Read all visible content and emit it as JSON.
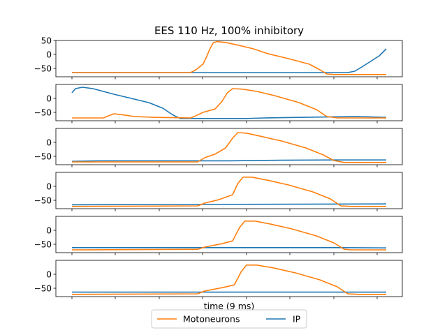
{
  "chart_data": {
    "type": "line",
    "title": "EES 110 Hz, 100% inhibitory",
    "xlabel": "time (9 ms)",
    "ylabel": "",
    "xlim": [
      0,
      9
    ],
    "legend": {
      "placement": "bottom-center",
      "entries": [
        {
          "name": "Motoneurons",
          "color": "#ff7f0e"
        },
        {
          "name": "IP",
          "color": "#1f77b4"
        }
      ]
    },
    "series_colors": {
      "motoneurons": "#ff7f0e",
      "ip": "#1f77b4"
    },
    "panels": [
      {
        "ylim": [
          -80,
          50
        ],
        "yticks": [
          50,
          0,
          -50
        ],
        "motoneurons": [
          [
            0,
            -65
          ],
          [
            3.4,
            -65
          ],
          [
            3.55,
            -55
          ],
          [
            3.75,
            -35
          ],
          [
            3.85,
            -10
          ],
          [
            3.95,
            20
          ],
          [
            4.05,
            42
          ],
          [
            4.15,
            46
          ],
          [
            4.4,
            43
          ],
          [
            4.8,
            32
          ],
          [
            5.2,
            20
          ],
          [
            5.6,
            3
          ],
          [
            6.2,
            -15
          ],
          [
            6.8,
            -35
          ],
          [
            7.1,
            -55
          ],
          [
            7.3,
            -70
          ],
          [
            7.5,
            -72
          ],
          [
            9,
            -72
          ]
        ],
        "ip": [
          [
            0,
            -65
          ],
          [
            7.5,
            -65
          ],
          [
            7.9,
            -65
          ],
          [
            8.1,
            -60
          ],
          [
            8.3,
            -45
          ],
          [
            8.55,
            -25
          ],
          [
            8.8,
            -5
          ],
          [
            9,
            20
          ]
        ]
      },
      {
        "ylim": [
          -80,
          50
        ],
        "yticks": [
          0,
          -50
        ],
        "motoneurons": [
          [
            0,
            -70
          ],
          [
            0.9,
            -70
          ],
          [
            1.1,
            -60
          ],
          [
            1.2,
            -55
          ],
          [
            1.4,
            -58
          ],
          [
            1.8,
            -65
          ],
          [
            2.4,
            -68
          ],
          [
            3.4,
            -70
          ],
          [
            3.55,
            -62
          ],
          [
            3.75,
            -50
          ],
          [
            4.1,
            -38
          ],
          [
            4.3,
            -10
          ],
          [
            4.45,
            20
          ],
          [
            4.6,
            35
          ],
          [
            4.9,
            33
          ],
          [
            5.3,
            25
          ],
          [
            5.8,
            10
          ],
          [
            6.5,
            -15
          ],
          [
            7.0,
            -40
          ],
          [
            7.3,
            -65
          ],
          [
            7.6,
            -70
          ],
          [
            9,
            -70
          ]
        ],
        "ip": [
          [
            0,
            20
          ],
          [
            0.1,
            35
          ],
          [
            0.3,
            40
          ],
          [
            0.6,
            35
          ],
          [
            1.2,
            15
          ],
          [
            2.2,
            -15
          ],
          [
            2.6,
            -35
          ],
          [
            2.9,
            -60
          ],
          [
            3.1,
            -72
          ],
          [
            3.5,
            -72
          ],
          [
            4.0,
            -72
          ],
          [
            5.0,
            -72
          ],
          [
            5.5,
            -70
          ],
          [
            6.5,
            -68
          ],
          [
            7.5,
            -66
          ],
          [
            8.2,
            -65
          ],
          [
            9,
            -68
          ]
        ]
      },
      {
        "ylim": [
          -80,
          50
        ],
        "yticks": [
          0,
          -50
        ],
        "motoneurons": [
          [
            0,
            -70
          ],
          [
            3.6,
            -70
          ],
          [
            3.8,
            -55
          ],
          [
            4.1,
            -42
          ],
          [
            4.4,
            -20
          ],
          [
            4.6,
            15
          ],
          [
            4.75,
            35
          ],
          [
            5.0,
            33
          ],
          [
            5.4,
            22
          ],
          [
            6.0,
            5
          ],
          [
            6.7,
            -20
          ],
          [
            7.2,
            -45
          ],
          [
            7.5,
            -65
          ],
          [
            7.8,
            -72
          ],
          [
            9,
            -72
          ]
        ],
        "ip": [
          [
            0,
            -68
          ],
          [
            0.8,
            -66
          ],
          [
            3.6,
            -66
          ],
          [
            4.5,
            -66
          ],
          [
            6.0,
            -64
          ],
          [
            7.5,
            -63
          ],
          [
            9,
            -63
          ]
        ]
      },
      {
        "ylim": [
          -80,
          50
        ],
        "yticks": [
          0,
          -50
        ],
        "motoneurons": [
          [
            0,
            -72
          ],
          [
            3.6,
            -70
          ],
          [
            3.8,
            -60
          ],
          [
            4.2,
            -48
          ],
          [
            4.6,
            -30
          ],
          [
            4.75,
            10
          ],
          [
            4.9,
            33
          ],
          [
            5.15,
            33
          ],
          [
            5.6,
            22
          ],
          [
            6.2,
            5
          ],
          [
            6.9,
            -20
          ],
          [
            7.4,
            -45
          ],
          [
            7.7,
            -70
          ],
          [
            8,
            -72
          ],
          [
            9,
            -72
          ]
        ],
        "ip": [
          [
            0,
            -66
          ],
          [
            9,
            -63
          ]
        ]
      },
      {
        "ylim": [
          -80,
          50
        ],
        "yticks": [
          0,
          -50
        ],
        "motoneurons": [
          [
            0,
            -70
          ],
          [
            3.6,
            -68
          ],
          [
            3.8,
            -60
          ],
          [
            4.3,
            -48
          ],
          [
            4.6,
            -38
          ],
          [
            4.8,
            10
          ],
          [
            4.95,
            33
          ],
          [
            5.25,
            33
          ],
          [
            5.7,
            22
          ],
          [
            6.3,
            5
          ],
          [
            7.0,
            -20
          ],
          [
            7.5,
            -45
          ],
          [
            7.8,
            -68
          ],
          [
            8,
            -70
          ],
          [
            9,
            -70
          ]
        ],
        "ip": [
          [
            0,
            -62
          ],
          [
            7.6,
            -62
          ],
          [
            9,
            -63
          ]
        ]
      },
      {
        "ylim": [
          -80,
          50
        ],
        "yticks": [
          0,
          -50
        ],
        "motoneurons": [
          [
            0,
            -72
          ],
          [
            3.6,
            -70
          ],
          [
            3.8,
            -60
          ],
          [
            4.3,
            -48
          ],
          [
            4.65,
            -38
          ],
          [
            4.85,
            10
          ],
          [
            5.0,
            33
          ],
          [
            5.3,
            33
          ],
          [
            5.8,
            22
          ],
          [
            6.4,
            5
          ],
          [
            7.1,
            -20
          ],
          [
            7.6,
            -45
          ],
          [
            7.9,
            -70
          ],
          [
            8.2,
            -72
          ],
          [
            9,
            -72
          ]
        ],
        "ip": [
          [
            0,
            -64
          ],
          [
            9,
            -64
          ]
        ]
      }
    ]
  }
}
